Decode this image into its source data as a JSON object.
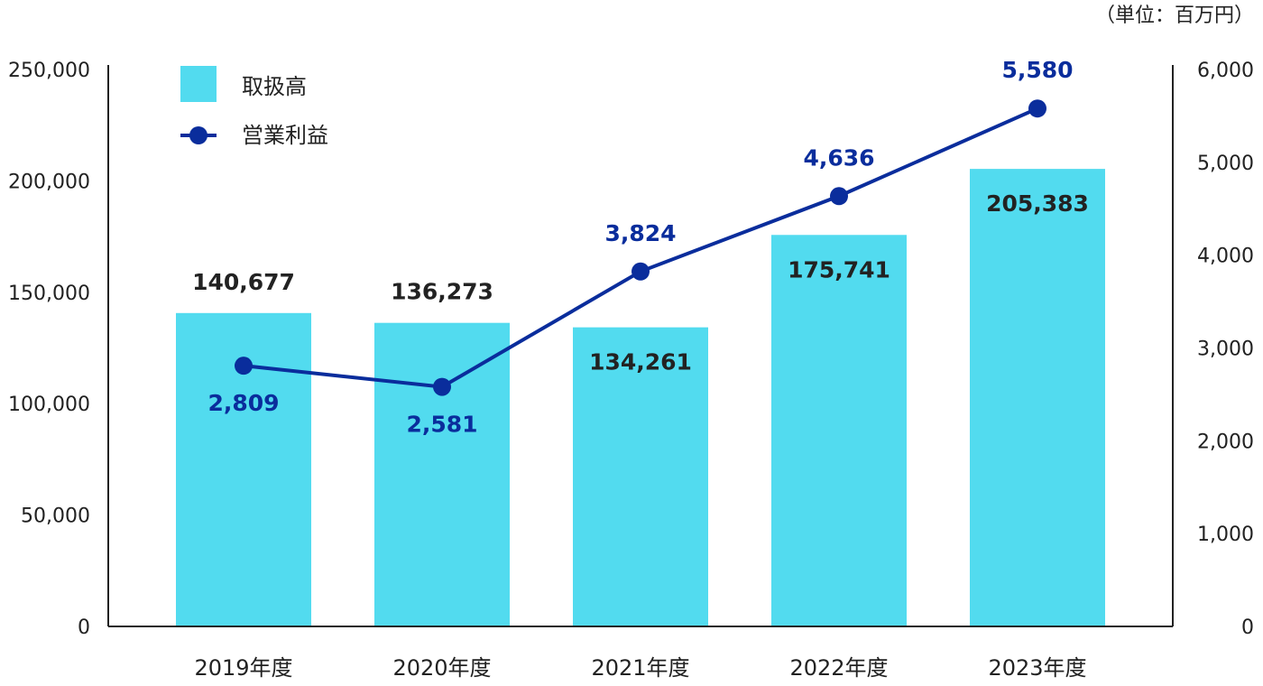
{
  "chart_data": {
    "type": "bar",
    "categories": [
      "2019年度",
      "2020年度",
      "2021年度",
      "2022年度",
      "2023年度"
    ],
    "unit": "（単位：百万円）",
    "y_left": {
      "min": 0,
      "max": 250000,
      "ticks": [
        0,
        50000,
        100000,
        150000,
        200000,
        250000
      ],
      "tick_labels": [
        "0",
        "50,000",
        "100,000",
        "150,000",
        "200,000",
        "250,000"
      ]
    },
    "y_right": {
      "min": 0,
      "max": 6000,
      "ticks": [
        0,
        1000,
        2000,
        3000,
        4000,
        5000,
        6000
      ],
      "tick_labels": [
        "0",
        "1,000",
        "2,000",
        "3,000",
        "4,000",
        "5,000",
        "6,000"
      ]
    },
    "grid": false,
    "legend_position": "top-left",
    "series": [
      {
        "name": "取扱高",
        "type": "bar",
        "axis": "left",
        "color": "#52dbef",
        "values": [
          140677,
          136273,
          134261,
          175741,
          205383
        ],
        "labels": [
          "140,677",
          "136,273",
          "134,261",
          "175,741",
          "205,383"
        ],
        "label_placement": [
          "above",
          "above",
          "inside",
          "inside",
          "inside"
        ]
      },
      {
        "name": "営業利益",
        "type": "line",
        "axis": "right",
        "color": "#0a2d9c",
        "values": [
          2809,
          2581,
          3824,
          4636,
          5580
        ],
        "labels": [
          "2,809",
          "2,581",
          "3,824",
          "4,636",
          "5,580"
        ],
        "label_placement": [
          "below",
          "below",
          "above",
          "above",
          "above"
        ]
      }
    ]
  }
}
